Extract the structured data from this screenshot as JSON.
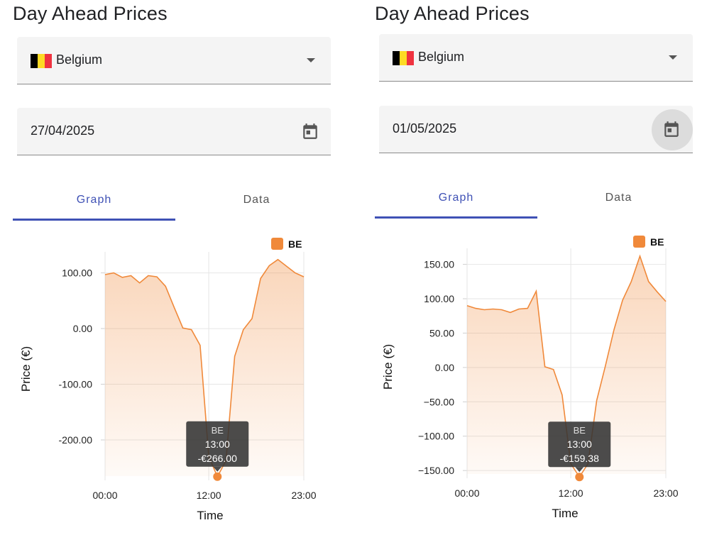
{
  "panels": [
    {
      "title": "Day Ahead Prices",
      "country": {
        "label": "Belgium",
        "flag_colors": [
          "#000000",
          "#FDDA24",
          "#EF3340"
        ]
      },
      "date": {
        "value": "27/04/2025",
        "icon": "calendar-icon"
      },
      "tabs": [
        {
          "label": "Graph",
          "active": true
        },
        {
          "label": "Data",
          "active": false
        }
      ],
      "tooltip": {
        "series": "BE",
        "time": "13:00",
        "price": "-€266.00"
      },
      "chart_data": {
        "type": "area",
        "title": "",
        "xlabel": "Time",
        "ylabel": "Price (€)",
        "legend": {
          "entries": [
            "BE"
          ],
          "placement": "top-right"
        },
        "x": [
          "00:00",
          "01:00",
          "02:00",
          "03:00",
          "04:00",
          "05:00",
          "06:00",
          "07:00",
          "08:00",
          "09:00",
          "10:00",
          "11:00",
          "12:00",
          "13:00",
          "14:00",
          "15:00",
          "16:00",
          "17:00",
          "18:00",
          "19:00",
          "20:00",
          "21:00",
          "22:00",
          "23:00"
        ],
        "x_tick_labels": [
          "00:00",
          "12:00",
          "23:00"
        ],
        "y_ticks": [
          100,
          0,
          -100,
          -200
        ],
        "y_tick_labels": [
          "100.00",
          "0.00",
          "-100.00",
          "-200.00"
        ],
        "ylim": [
          -265,
          125
        ],
        "series": [
          {
            "name": "BE",
            "color": "#F0893A",
            "values": [
              97,
              100,
              92,
              95,
              82,
              95,
              93,
              76,
              38,
              1,
              -2,
              -30,
              -230,
              -266,
              -237,
              -50,
              -2,
              18,
              90,
              113,
              124,
              112,
              100,
              93
            ]
          }
        ],
        "highlight_index": 13,
        "grid": "vertical"
      }
    },
    {
      "title": "Day Ahead Prices",
      "country": {
        "label": "Belgium",
        "flag_colors": [
          "#000000",
          "#FDDA24",
          "#EF3340"
        ]
      },
      "date": {
        "value": "01/05/2025",
        "icon": "calendar-icon"
      },
      "tabs": [
        {
          "label": "Graph",
          "active": true
        },
        {
          "label": "Data",
          "active": false
        }
      ],
      "tooltip": {
        "series": "BE",
        "time": "13:00",
        "price": "-€159.38"
      },
      "chart_data": {
        "type": "area",
        "title": "",
        "xlabel": "Time",
        "ylabel": "Price (€)",
        "legend": {
          "entries": [
            "BE"
          ],
          "placement": "top-right"
        },
        "x": [
          "00:00",
          "01:00",
          "02:00",
          "03:00",
          "04:00",
          "05:00",
          "06:00",
          "07:00",
          "08:00",
          "09:00",
          "10:00",
          "11:00",
          "12:00",
          "13:00",
          "14:00",
          "15:00",
          "16:00",
          "17:00",
          "18:00",
          "19:00",
          "20:00",
          "21:00",
          "22:00",
          "23:00"
        ],
        "x_tick_labels": [
          "00:00",
          "12:00",
          "23:00"
        ],
        "y_ticks": [
          150,
          100,
          50,
          0,
          -50,
          -100,
          -150
        ],
        "y_tick_labels": [
          "150.00",
          "100.00",
          "50.00",
          "0.00",
          "−50.00",
          "−100.00",
          "−150.00"
        ],
        "ylim": [
          -155,
          163
        ],
        "series": [
          {
            "name": "BE",
            "color": "#F0893A",
            "values": [
              90,
              86,
              84,
              85,
              84,
              80,
              85,
              86,
              111,
              1,
              -3,
              -40,
              -140,
              -159.38,
              -140,
              -48,
              2,
              55,
              98,
              125,
              162,
              125,
              110,
              96
            ]
          }
        ],
        "highlight_index": 13,
        "grid": "horizontal-vertical"
      }
    }
  ]
}
